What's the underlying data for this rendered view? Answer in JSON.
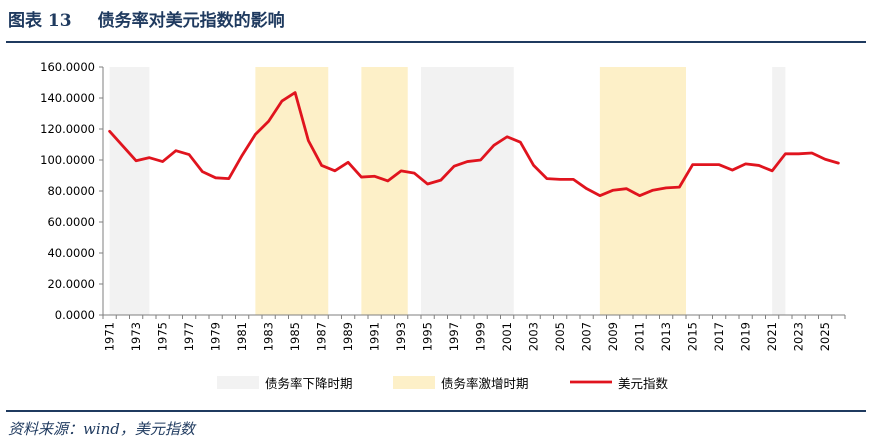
{
  "header": {
    "figure_label": "图表 13",
    "title": "债务率对美元指数的影响"
  },
  "footer": {
    "source": "资料来源：wind，美元指数"
  },
  "colors": {
    "title": "#1f3a5f",
    "line": "#e0141e",
    "decline_band": "#f2f2f2",
    "surge_band": "#fdf0c8"
  },
  "chart_data": {
    "type": "line",
    "x": [
      1971,
      1972,
      1973,
      1974,
      1975,
      1976,
      1977,
      1978,
      1979,
      1980,
      1981,
      1982,
      1983,
      1984,
      1985,
      1986,
      1987,
      1988,
      1989,
      1990,
      1991,
      1992,
      1993,
      1994,
      1995,
      1996,
      1997,
      1998,
      1999,
      2000,
      2001,
      2002,
      2003,
      2004,
      2005,
      2006,
      2007,
      2008,
      2009,
      2010,
      2011,
      2012,
      2013,
      2014,
      2015,
      2016,
      2017,
      2018,
      2019,
      2020,
      2021,
      2022,
      2023,
      2024,
      2025,
      2026
    ],
    "series": [
      {
        "name": "美元指数",
        "values": [
          118.5,
          109.0,
          99.5,
          101.5,
          99.0,
          106.0,
          103.5,
          92.5,
          88.5,
          88.0,
          103.0,
          116.5,
          125.0,
          138.0,
          143.5,
          112.5,
          96.5,
          93.0,
          98.5,
          89.0,
          89.5,
          86.5,
          93.0,
          91.5,
          84.5,
          87.0,
          96.0,
          99.0,
          100.0,
          109.5,
          115.0,
          111.5,
          96.5,
          88.0,
          87.5,
          87.5,
          81.5,
          77.0,
          80.5,
          81.5,
          77.0,
          80.5,
          82.0,
          82.5,
          97.0,
          97.0,
          97.0,
          93.5,
          97.5,
          96.5,
          93.0,
          104.0,
          104.0,
          104.5,
          100.5,
          98.0
        ]
      }
    ],
    "bands": [
      {
        "type": "decline",
        "start": 1971,
        "end": 1974
      },
      {
        "type": "surge",
        "start": 1982,
        "end": 1987.5
      },
      {
        "type": "surge",
        "start": 1990,
        "end": 1993.5
      },
      {
        "type": "decline",
        "start": 1994.5,
        "end": 2001.5
      },
      {
        "type": "surge",
        "start": 2008,
        "end": 2014.5
      },
      {
        "type": "decline",
        "start": 2021,
        "end": 2022
      }
    ],
    "ylim": [
      0,
      160
    ],
    "y_ticks": [
      "0.0000",
      "20.0000",
      "40.0000",
      "60.0000",
      "80.0000",
      "100.0000",
      "120.0000",
      "140.0000",
      "160.0000"
    ],
    "x_tick_labels": [
      "1971",
      "1973",
      "1975",
      "1977",
      "1979",
      "1981",
      "1983",
      "1985",
      "1987",
      "1989",
      "1991",
      "1993",
      "1995",
      "1997",
      "1999",
      "2001",
      "2003",
      "2005",
      "2007",
      "2009",
      "2011",
      "2013",
      "2015",
      "2017",
      "2019",
      "2021",
      "2023",
      "2025"
    ],
    "legend": {
      "position": "bottom",
      "entries": [
        {
          "key": "decline",
          "label": "债务率下降时期"
        },
        {
          "key": "surge",
          "label": "债务率激增时期"
        },
        {
          "key": "line",
          "label": "美元指数"
        }
      ]
    },
    "grid": false
  }
}
